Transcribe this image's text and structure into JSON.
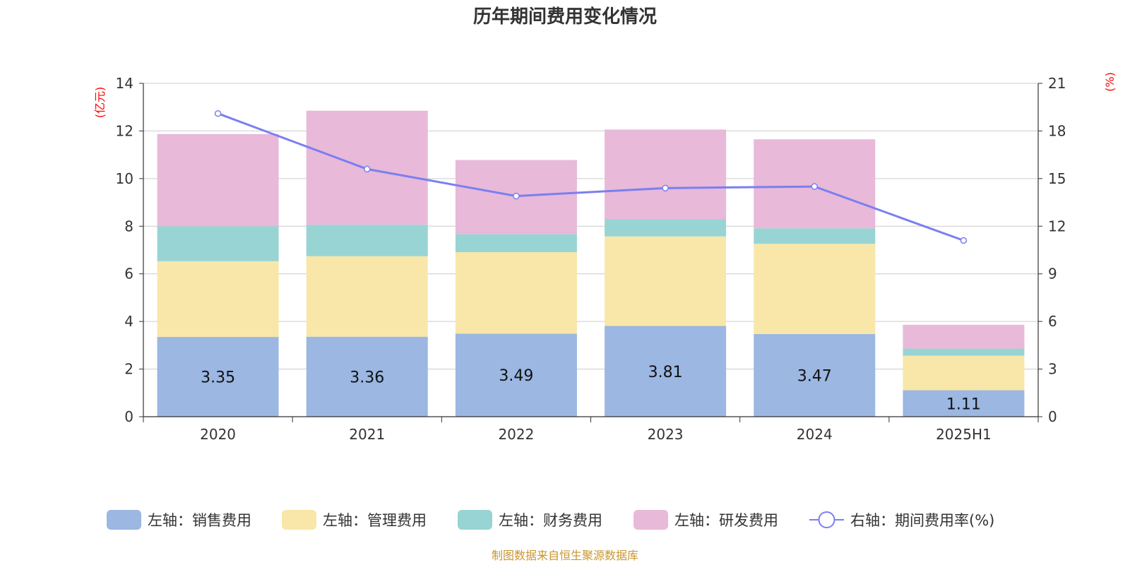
{
  "chart_data": {
    "type": "bar",
    "title": "历年期间费用变化情况",
    "categories": [
      "2020",
      "2021",
      "2022",
      "2023",
      "2024",
      "2025H1"
    ],
    "left_axis": {
      "unit": "(亿元)",
      "ylim": [
        0,
        14
      ],
      "ticks": [
        "0",
        "2",
        "4",
        "6",
        "8",
        "10",
        "12",
        "14"
      ]
    },
    "right_axis": {
      "unit": "(%)",
      "ylim": [
        0,
        21
      ],
      "ticks": [
        "0",
        "3",
        "6",
        "9",
        "12",
        "15",
        "18",
        "21"
      ]
    },
    "stacked": true,
    "grid": true,
    "legend_position": "bottom",
    "series": [
      {
        "name": "左轴：销售费用",
        "axis": "left",
        "type": "bar",
        "color": "#9bb7e2",
        "values": [
          3.35,
          3.36,
          3.49,
          3.81,
          3.47,
          1.11
        ],
        "labels": [
          "3.35",
          "3.36",
          "3.49",
          "3.81",
          "3.47",
          "1.11"
        ]
      },
      {
        "name": "左轴：管理费用",
        "axis": "left",
        "type": "bar",
        "color": "#f8e7a8",
        "values": [
          3.18,
          3.38,
          3.42,
          3.76,
          3.79,
          1.45
        ]
      },
      {
        "name": "左轴：财务费用",
        "axis": "left",
        "type": "bar",
        "color": "#98d4d4",
        "values": [
          1.47,
          1.32,
          0.76,
          0.72,
          0.65,
          0.3
        ]
      },
      {
        "name": "左轴：研发费用",
        "axis": "left",
        "type": "bar",
        "color": "#e8b9d9",
        "values": [
          3.87,
          4.79,
          3.11,
          3.77,
          3.74,
          1.0
        ]
      },
      {
        "name": "右轴：期间费用率(%)",
        "axis": "right",
        "type": "line",
        "color": "#7b7ff0",
        "values": [
          19.1,
          15.6,
          13.9,
          14.4,
          14.5,
          11.1
        ]
      }
    ]
  },
  "footer": {
    "source": "制图数据来自恒生聚源数据库"
  }
}
